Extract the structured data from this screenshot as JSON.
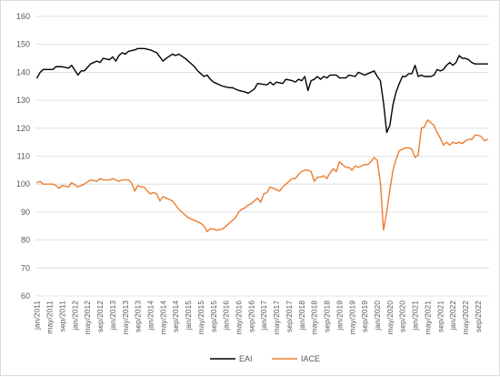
{
  "chart_data": {
    "type": "line",
    "title": "",
    "xlabel": "",
    "ylabel": "",
    "ylim": [
      60,
      160
    ],
    "yticks": [
      60,
      70,
      80,
      90,
      100,
      110,
      120,
      130,
      140,
      150,
      160
    ],
    "grid": true,
    "legend_position": "bottom",
    "x_start": "2011-01",
    "x_end": "2022-12",
    "x_tick_labels": [
      "jan/2011",
      "may/2011",
      "sep/2011",
      "jan/2012",
      "may/2012",
      "sep/2012",
      "jan/2013",
      "may/2013",
      "sep/2013",
      "jan/2014",
      "may/2014",
      "sep/2014",
      "jan/2015",
      "may/2015",
      "sep/2015",
      "jan/2016",
      "may/2016",
      "sep/2016",
      "jan/2017",
      "may/2017",
      "sep/2017",
      "jan/2018",
      "may/2018",
      "sep/2018",
      "jan/2019",
      "may/2019",
      "sep/2019",
      "jan/2020",
      "may/2020",
      "sep/2020",
      "jan/2021",
      "may/2021",
      "sep/2021",
      "jan/2022",
      "may/2022",
      "sep/2022"
    ],
    "series": [
      {
        "name": "EAI",
        "color": "#000000",
        "points": [
          [
            "2011-01",
            138.0
          ],
          [
            "2011-02",
            140.0
          ],
          [
            "2011-03",
            141.0
          ],
          [
            "2011-06",
            141.0
          ],
          [
            "2011-07",
            142.0
          ],
          [
            "2011-09",
            142.0
          ],
          [
            "2011-11",
            141.5
          ],
          [
            "2011-12",
            142.5
          ],
          [
            "2012-02",
            139.0
          ],
          [
            "2012-03",
            140.5
          ],
          [
            "2012-04",
            140.5
          ],
          [
            "2012-06",
            143.0
          ],
          [
            "2012-08",
            144.0
          ],
          [
            "2012-09",
            143.5
          ],
          [
            "2012-10",
            145.0
          ],
          [
            "2012-12",
            144.5
          ],
          [
            "2013-01",
            145.5
          ],
          [
            "2013-02",
            144.0
          ],
          [
            "2013-03",
            146.0
          ],
          [
            "2013-04",
            147.0
          ],
          [
            "2013-05",
            146.5
          ],
          [
            "2013-06",
            147.5
          ],
          [
            "2013-08",
            148.0
          ],
          [
            "2013-09",
            148.5
          ],
          [
            "2013-11",
            148.5
          ],
          [
            "2014-01",
            148.0
          ],
          [
            "2014-03",
            147.0
          ],
          [
            "2014-05",
            144.0
          ],
          [
            "2014-06",
            145.0
          ],
          [
            "2014-08",
            146.5
          ],
          [
            "2014-09",
            146.0
          ],
          [
            "2014-10",
            146.5
          ],
          [
            "2014-12",
            145.0
          ],
          [
            "2015-01",
            144.0
          ],
          [
            "2015-03",
            142.0
          ],
          [
            "2015-04",
            140.5
          ],
          [
            "2015-05",
            139.5
          ],
          [
            "2015-06",
            138.5
          ],
          [
            "2015-07",
            139.0
          ],
          [
            "2015-08",
            137.5
          ],
          [
            "2015-09",
            136.5
          ],
          [
            "2015-10",
            136.0
          ],
          [
            "2015-11",
            135.5
          ],
          [
            "2015-12",
            135.0
          ],
          [
            "2016-02",
            134.5
          ],
          [
            "2016-03",
            134.5
          ],
          [
            "2016-05",
            133.5
          ],
          [
            "2016-07",
            133.0
          ],
          [
            "2016-08",
            132.5
          ],
          [
            "2016-10",
            134.0
          ],
          [
            "2016-11",
            136.0
          ],
          [
            "2017-02",
            135.5
          ],
          [
            "2017-03",
            136.5
          ],
          [
            "2017-04",
            135.5
          ],
          [
            "2017-05",
            136.5
          ],
          [
            "2017-07",
            136.0
          ],
          [
            "2017-08",
            137.5
          ],
          [
            "2017-10",
            137.0
          ],
          [
            "2017-11",
            136.5
          ],
          [
            "2017-12",
            137.5
          ],
          [
            "2018-01",
            137.0
          ],
          [
            "2018-02",
            138.5
          ],
          [
            "2018-03",
            133.5
          ],
          [
            "2018-04",
            137.0
          ],
          [
            "2018-05",
            137.5
          ],
          [
            "2018-06",
            138.5
          ],
          [
            "2018-07",
            137.5
          ],
          [
            "2018-08",
            138.5
          ],
          [
            "2018-09",
            138.0
          ],
          [
            "2018-10",
            139.0
          ],
          [
            "2018-12",
            139.0
          ],
          [
            "2019-01",
            138.0
          ],
          [
            "2019-03",
            138.0
          ],
          [
            "2019-04",
            139.0
          ],
          [
            "2019-06",
            138.5
          ],
          [
            "2019-07",
            140.0
          ],
          [
            "2019-09",
            139.0
          ],
          [
            "2019-10",
            139.5
          ],
          [
            "2019-12",
            140.5
          ],
          [
            "2020-01",
            138.5
          ],
          [
            "2020-02",
            137.0
          ],
          [
            "2020-03",
            129.0
          ],
          [
            "2020-04",
            118.5
          ],
          [
            "2020-05",
            121.0
          ],
          [
            "2020-06",
            128.5
          ],
          [
            "2020-07",
            133.0
          ],
          [
            "2020-08",
            136.0
          ],
          [
            "2020-09",
            138.5
          ],
          [
            "2020-10",
            138.5
          ],
          [
            "2020-11",
            139.5
          ],
          [
            "2020-12",
            139.5
          ],
          [
            "2021-01",
            142.5
          ],
          [
            "2021-02",
            138.5
          ],
          [
            "2021-03",
            139.0
          ],
          [
            "2021-04",
            138.5
          ],
          [
            "2021-06",
            138.5
          ],
          [
            "2021-07",
            139.0
          ],
          [
            "2021-08",
            141.0
          ],
          [
            "2021-09",
            140.5
          ],
          [
            "2021-10",
            141.0
          ],
          [
            "2021-11",
            142.5
          ],
          [
            "2021-12",
            143.5
          ],
          [
            "2022-01",
            142.5
          ],
          [
            "2022-02",
            143.5
          ],
          [
            "2022-03",
            146.0
          ],
          [
            "2022-04",
            145.0
          ],
          [
            "2022-05",
            145.0
          ],
          [
            "2022-06",
            144.5
          ],
          [
            "2022-07",
            143.5
          ],
          [
            "2022-08",
            143.0
          ],
          [
            "2022-12",
            143.0
          ]
        ]
      },
      {
        "name": "IACE",
        "color": "#ed7d31",
        "points": [
          [
            "2011-01",
            100.5
          ],
          [
            "2011-02",
            101.0
          ],
          [
            "2011-03",
            100.0
          ],
          [
            "2011-06",
            100.0
          ],
          [
            "2011-07",
            99.5
          ],
          [
            "2011-08",
            98.5
          ],
          [
            "2011-09",
            99.5
          ],
          [
            "2011-11",
            99.0
          ],
          [
            "2011-12",
            100.5
          ],
          [
            "2012-02",
            99.0
          ],
          [
            "2012-04",
            100.0
          ],
          [
            "2012-06",
            101.5
          ],
          [
            "2012-08",
            101.0
          ],
          [
            "2012-09",
            102.0
          ],
          [
            "2012-10",
            101.5
          ],
          [
            "2012-12",
            101.5
          ],
          [
            "2013-01",
            102.0
          ],
          [
            "2013-02",
            101.5
          ],
          [
            "2013-03",
            101.0
          ],
          [
            "2013-04",
            101.5
          ],
          [
            "2013-06",
            101.5
          ],
          [
            "2013-07",
            100.5
          ],
          [
            "2013-08",
            97.5
          ],
          [
            "2013-09",
            99.5
          ],
          [
            "2013-10",
            99.0
          ],
          [
            "2013-11",
            99.0
          ],
          [
            "2013-12",
            97.5
          ],
          [
            "2014-01",
            96.5
          ],
          [
            "2014-02",
            97.0
          ],
          [
            "2014-03",
            96.5
          ],
          [
            "2014-04",
            94.0
          ],
          [
            "2014-05",
            95.5
          ],
          [
            "2014-06",
            95.0
          ],
          [
            "2014-07",
            94.5
          ],
          [
            "2014-08",
            94.0
          ],
          [
            "2014-09",
            92.5
          ],
          [
            "2014-10",
            91.0
          ],
          [
            "2014-11",
            90.0
          ],
          [
            "2014-12",
            89.0
          ],
          [
            "2015-01",
            88.0
          ],
          [
            "2015-02",
            87.5
          ],
          [
            "2015-04",
            86.5
          ],
          [
            "2015-05",
            86.0
          ],
          [
            "2015-06",
            85.0
          ],
          [
            "2015-07",
            83.0
          ],
          [
            "2015-08",
            84.0
          ],
          [
            "2015-09",
            84.0
          ],
          [
            "2015-10",
            83.5
          ],
          [
            "2015-12",
            84.0
          ],
          [
            "2016-02",
            86.0
          ],
          [
            "2016-04",
            88.0
          ],
          [
            "2016-05",
            90.0
          ],
          [
            "2016-06",
            91.0
          ],
          [
            "2016-07",
            91.5
          ],
          [
            "2016-08",
            92.5
          ],
          [
            "2016-09",
            93.0
          ],
          [
            "2016-10",
            94.0
          ],
          [
            "2016-11",
            95.0
          ],
          [
            "2016-12",
            93.5
          ],
          [
            "2017-01",
            96.5
          ],
          [
            "2017-02",
            97.0
          ],
          [
            "2017-03",
            99.0
          ],
          [
            "2017-04",
            98.5
          ],
          [
            "2017-05",
            98.0
          ],
          [
            "2017-06",
            97.5
          ],
          [
            "2017-07",
            99.0
          ],
          [
            "2017-08",
            100.0
          ],
          [
            "2017-09",
            101.0
          ],
          [
            "2017-10",
            102.0
          ],
          [
            "2017-11",
            102.0
          ],
          [
            "2017-12",
            103.5
          ],
          [
            "2018-01",
            104.5
          ],
          [
            "2018-02",
            105.0
          ],
          [
            "2018-03",
            105.0
          ],
          [
            "2018-04",
            104.5
          ],
          [
            "2018-05",
            101.0
          ],
          [
            "2018-06",
            102.5
          ],
          [
            "2018-07",
            102.5
          ],
          [
            "2018-08",
            103.0
          ],
          [
            "2018-09",
            102.0
          ],
          [
            "2018-10",
            104.0
          ],
          [
            "2018-11",
            105.5
          ],
          [
            "2018-12",
            104.5
          ],
          [
            "2019-01",
            108.0
          ],
          [
            "2019-02",
            107.0
          ],
          [
            "2019-03",
            106.0
          ],
          [
            "2019-04",
            106.0
          ],
          [
            "2019-05",
            105.0
          ],
          [
            "2019-06",
            106.5
          ],
          [
            "2019-07",
            106.0
          ],
          [
            "2019-08",
            106.5
          ],
          [
            "2019-09",
            107.0
          ],
          [
            "2019-10",
            107.0
          ],
          [
            "2019-11",
            108.0
          ],
          [
            "2019-12",
            109.5
          ],
          [
            "2020-01",
            108.5
          ],
          [
            "2020-02",
            100.5
          ],
          [
            "2020-03",
            83.5
          ],
          [
            "2020-04",
            90.0
          ],
          [
            "2020-05",
            98.0
          ],
          [
            "2020-06",
            105.0
          ],
          [
            "2020-07",
            109.0
          ],
          [
            "2020-08",
            112.0
          ],
          [
            "2020-09",
            112.5
          ],
          [
            "2020-10",
            113.0
          ],
          [
            "2020-11",
            113.0
          ],
          [
            "2020-12",
            112.5
          ],
          [
            "2021-01",
            109.5
          ],
          [
            "2021-02",
            110.5
          ],
          [
            "2021-03",
            120.0
          ],
          [
            "2021-04",
            120.5
          ],
          [
            "2021-05",
            123.0
          ],
          [
            "2021-06",
            122.0
          ],
          [
            "2021-07",
            121.0
          ],
          [
            "2021-08",
            118.5
          ],
          [
            "2021-09",
            116.5
          ],
          [
            "2021-10",
            114.0
          ],
          [
            "2021-11",
            115.0
          ],
          [
            "2021-12",
            114.0
          ],
          [
            "2022-01",
            115.0
          ],
          [
            "2022-02",
            114.5
          ],
          [
            "2022-03",
            115.0
          ],
          [
            "2022-04",
            114.5
          ],
          [
            "2022-05",
            115.5
          ],
          [
            "2022-06",
            116.0
          ],
          [
            "2022-07",
            116.0
          ],
          [
            "2022-08",
            117.5
          ],
          [
            "2022-09",
            117.5
          ],
          [
            "2022-10",
            117.0
          ],
          [
            "2022-11",
            115.5
          ],
          [
            "2022-12",
            116.0
          ]
        ]
      }
    ]
  }
}
